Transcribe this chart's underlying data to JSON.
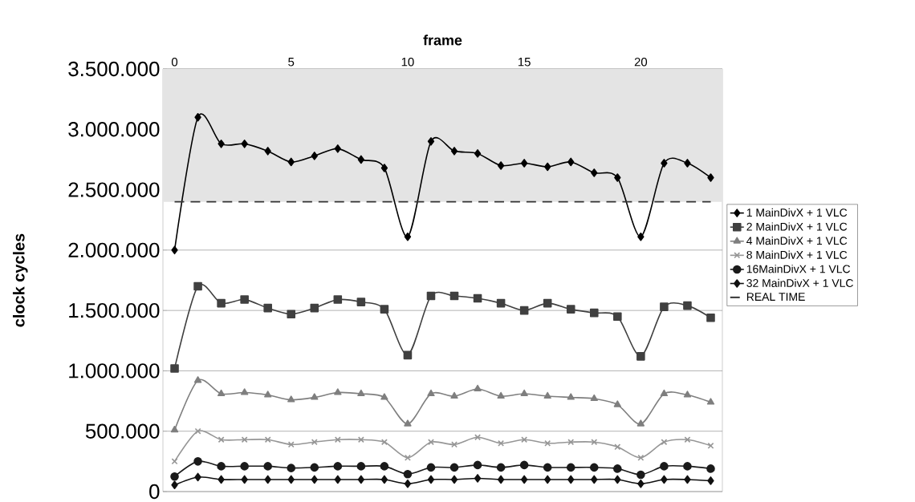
{
  "chart_data": {
    "type": "line",
    "xlabel": "frame",
    "ylabel": "clock cycles",
    "x": [
      0,
      1,
      2,
      3,
      4,
      5,
      6,
      7,
      8,
      9,
      10,
      11,
      12,
      13,
      14,
      15,
      16,
      17,
      18,
      19,
      20,
      21,
      22,
      23
    ],
    "xlim": [
      -0.5,
      23.5
    ],
    "xticks": [
      0,
      5,
      10,
      15,
      20
    ],
    "ylim": [
      0,
      3500000
    ],
    "yticks": [
      0,
      {
        "value": 500000,
        "label": "500.000"
      },
      {
        "value": 1000000,
        "label": "1.000.000"
      },
      {
        "value": 1500000,
        "label": "1.500.000"
      },
      {
        "value": 2000000,
        "label": "2.000.000"
      },
      {
        "value": 2500000,
        "label": "2.500.000"
      },
      {
        "value": 3000000,
        "label": "3.000.000"
      },
      {
        "value": 3500000,
        "label": "3.500.000"
      }
    ],
    "grid": "y",
    "legend": "right",
    "line_style": "solid",
    "series": [
      {
        "name": "1 MainDivX + 1 VLC",
        "color": "#000000",
        "marker": "diamond",
        "values": [
          2000000,
          3100000,
          2880000,
          2880000,
          2820000,
          2730000,
          2780000,
          2840000,
          2750000,
          2680000,
          2110000,
          2900000,
          2820000,
          2800000,
          2700000,
          2720000,
          2690000,
          2730000,
          2640000,
          2600000,
          2110000,
          2720000,
          2720000,
          2600000
        ]
      },
      {
        "name": "2 MainDivX + 1 VLC",
        "color": "#404040",
        "marker": "square",
        "values": [
          1020000,
          1700000,
          1560000,
          1590000,
          1520000,
          1470000,
          1520000,
          1590000,
          1570000,
          1510000,
          1130000,
          1620000,
          1620000,
          1600000,
          1560000,
          1500000,
          1560000,
          1510000,
          1480000,
          1450000,
          1120000,
          1530000,
          1540000,
          1440000
        ]
      },
      {
        "name": "4 MainDivX + 1 VLC",
        "color": "#7f7f7f",
        "marker": "triangle",
        "values": [
          510000,
          920000,
          810000,
          820000,
          800000,
          760000,
          780000,
          820000,
          810000,
          780000,
          560000,
          810000,
          790000,
          850000,
          790000,
          810000,
          790000,
          780000,
          770000,
          720000,
          560000,
          810000,
          800000,
          740000
        ]
      },
      {
        "name": "8 MainDivX + 1 VLC",
        "color": "#969696",
        "marker": "cross",
        "values": [
          250000,
          500000,
          430000,
          430000,
          430000,
          390000,
          410000,
          430000,
          430000,
          410000,
          280000,
          410000,
          390000,
          450000,
          400000,
          430000,
          400000,
          410000,
          410000,
          370000,
          280000,
          410000,
          430000,
          380000
        ]
      },
      {
        "name": "16MainDivX + 1 VLC",
        "color": "#1a1a1a",
        "marker": "circle",
        "values": [
          125000,
          250000,
          210000,
          210000,
          210000,
          195000,
          200000,
          210000,
          210000,
          210000,
          145000,
          200000,
          200000,
          220000,
          200000,
          220000,
          200000,
          200000,
          200000,
          190000,
          140000,
          210000,
          210000,
          190000
        ]
      },
      {
        "name": "32 MainDivX + 1 VLC",
        "color": "#111111",
        "marker": "diamond",
        "values": [
          55000,
          120000,
          100000,
          100000,
          100000,
          100000,
          100000,
          100000,
          100000,
          100000,
          65000,
          100000,
          100000,
          110000,
          100000,
          100000,
          100000,
          100000,
          100000,
          100000,
          65000,
          100000,
          100000,
          90000
        ]
      }
    ],
    "ref_lines": [
      {
        "axis": "y",
        "value": 2400000,
        "label": "REAL TIME",
        "color": "#333333",
        "line_style": "dashed"
      }
    ],
    "bands": [
      {
        "axis": "y",
        "from": 2400000,
        "to": 3500000,
        "color": "#e4e4e4"
      }
    ]
  }
}
